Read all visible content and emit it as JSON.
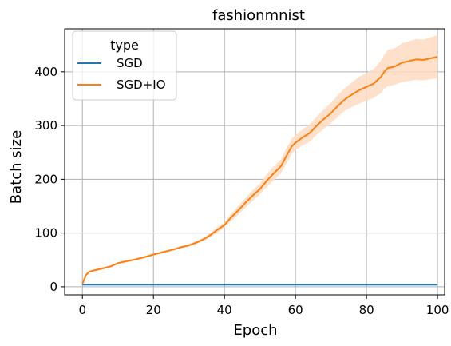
{
  "chart_data": {
    "type": "line",
    "title": "fashionmnist",
    "xlabel": "Epoch",
    "ylabel": "Batch size",
    "xlim": [
      -5,
      102
    ],
    "ylim": [
      -15,
      480
    ],
    "xticks": [
      0,
      20,
      40,
      60,
      80,
      100
    ],
    "yticks": [
      0,
      100,
      200,
      300,
      400
    ],
    "grid": true,
    "legend": {
      "title": "type",
      "position": "top-left"
    },
    "series": [
      {
        "name": "SGD",
        "color": "#1f77b4",
        "x": [
          0,
          100
        ],
        "y": [
          4,
          4
        ]
      },
      {
        "name": "SGD+IO",
        "color": "#ff7f0e",
        "band_color": "#ffdcc2",
        "x": [
          0,
          1,
          2,
          3,
          5,
          8,
          10,
          12,
          15,
          18,
          20,
          23,
          26,
          28,
          30,
          32,
          34,
          36,
          38,
          40,
          42,
          44,
          46,
          48,
          50,
          52,
          54,
          56,
          57,
          58,
          59,
          60,
          62,
          64,
          66,
          68,
          70,
          72,
          74,
          76,
          78,
          80,
          82,
          84,
          85,
          86,
          88,
          90,
          92,
          94,
          96,
          98,
          100
        ],
        "y": [
          5,
          22,
          28,
          30,
          33,
          38,
          44,
          47,
          51,
          56,
          60,
          65,
          70,
          74,
          77,
          82,
          88,
          96,
          106,
          115,
          130,
          143,
          157,
          170,
          182,
          198,
          212,
          225,
          238,
          250,
          262,
          268,
          278,
          286,
          300,
          312,
          323,
          337,
          349,
          358,
          366,
          372,
          378,
          390,
          400,
          407,
          410,
          417,
          420,
          423,
          422,
          425,
          428
        ],
        "lower": [
          5,
          20,
          26,
          28,
          31,
          36,
          42,
          45,
          49,
          54,
          58,
          63,
          68,
          72,
          75,
          79,
          85,
          92,
          101,
          110,
          123,
          135,
          148,
          160,
          172,
          186,
          199,
          212,
          224,
          236,
          248,
          254,
          263,
          270,
          283,
          294,
          304,
          317,
          328,
          335,
          341,
          346,
          351,
          360,
          368,
          373,
          376,
          381,
          383,
          385,
          384,
          386,
          388
        ],
        "upper": [
          5,
          24,
          30,
          32,
          35,
          40,
          46,
          49,
          53,
          58,
          62,
          67,
          72,
          76,
          80,
          85,
          91,
          100,
          111,
          120,
          137,
          151,
          166,
          180,
          192,
          210,
          225,
          238,
          252,
          264,
          276,
          282,
          293,
          302,
          317,
          330,
          342,
          357,
          370,
          381,
          391,
          398,
          405,
          420,
          432,
          441,
          444,
          453,
          457,
          461,
          460,
          464,
          468
        ]
      }
    ]
  }
}
